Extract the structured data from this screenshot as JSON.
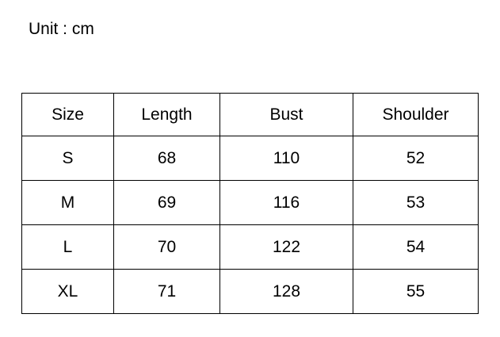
{
  "unit_label": "Unit : cm",
  "chart_data": {
    "type": "table",
    "title": "Unit : cm",
    "unit": "cm",
    "columns": [
      "Size",
      "Length",
      "Bust",
      "Shoulder"
    ],
    "rows": [
      [
        "S",
        68,
        110,
        52
      ],
      [
        "M",
        69,
        116,
        53
      ],
      [
        "L",
        70,
        122,
        54
      ],
      [
        "XL",
        71,
        128,
        55
      ]
    ]
  },
  "colors": {
    "background": "#ffffff",
    "text": "#000000",
    "border": "#000000"
  }
}
